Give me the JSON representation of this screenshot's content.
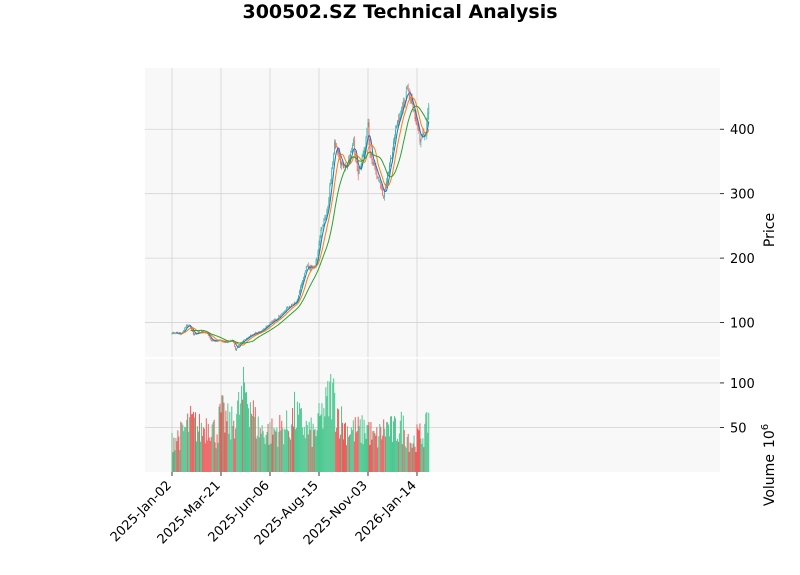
{
  "chart_data": {
    "type": "candlestick",
    "title": "300502.SZ Technical Analysis",
    "price_panel": {
      "ylabel": "Price",
      "yticks": [
        100,
        200,
        300,
        400
      ],
      "ylim": [
        45,
        495
      ]
    },
    "volume_panel": {
      "ylabel": "Volume",
      "ylabel_exponent": "6",
      "scale_note": "10",
      "yticks": [
        50,
        100
      ],
      "ylim": [
        0,
        128
      ]
    },
    "x_tick_labels": [
      "2025-Jan-02",
      "2025-Mar-21",
      "2025-Jun-06",
      "2025-Aug-15",
      "2025-Nov-03",
      "2026-Jan-14"
    ],
    "x_tick_index": [
      0,
      50,
      100,
      150,
      200,
      250
    ],
    "n_sessions": 263,
    "colors": {
      "up": "#26a69a",
      "down": "#ef5350",
      "vol_up": "#4dc790",
      "vol_down": "#f05a5a",
      "ma_short": "#1f77b4",
      "ma_mid": "#ff7f0e",
      "ma_long": "#2ca02c",
      "panel_bg": "#f8f8f8",
      "grid": "#d3d3d3"
    },
    "price_anchors": [
      [
        0,
        84
      ],
      [
        10,
        83
      ],
      [
        15,
        95
      ],
      [
        18,
        96
      ],
      [
        22,
        82
      ],
      [
        30,
        86
      ],
      [
        36,
        83
      ],
      [
        40,
        72
      ],
      [
        48,
        72
      ],
      [
        55,
        70
      ],
      [
        62,
        72
      ],
      [
        65,
        58
      ],
      [
        70,
        68
      ],
      [
        80,
        80
      ],
      [
        90,
        86
      ],
      [
        100,
        98
      ],
      [
        110,
        110
      ],
      [
        120,
        125
      ],
      [
        128,
        135
      ],
      [
        132,
        160
      ],
      [
        137,
        185
      ],
      [
        145,
        185
      ],
      [
        148,
        200
      ],
      [
        152,
        245
      ],
      [
        158,
        270
      ],
      [
        162,
        320
      ],
      [
        166,
        380
      ],
      [
        172,
        350
      ],
      [
        176,
        340
      ],
      [
        180,
        350
      ],
      [
        185,
        378
      ],
      [
        190,
        330
      ],
      [
        193,
        350
      ],
      [
        197,
        375
      ],
      [
        200,
        410
      ],
      [
        202,
        358
      ],
      [
        206,
        345
      ],
      [
        212,
        320
      ],
      [
        216,
        295
      ],
      [
        220,
        330
      ],
      [
        224,
        358
      ],
      [
        228,
        395
      ],
      [
        232,
        420
      ],
      [
        236,
        440
      ],
      [
        240,
        460
      ],
      [
        245,
        440
      ],
      [
        250,
        405
      ],
      [
        253,
        385
      ],
      [
        256,
        392
      ],
      [
        259,
        398
      ],
      [
        262,
        438
      ]
    ],
    "volume_anchors": [
      [
        0,
        40
      ],
      [
        10,
        45
      ],
      [
        15,
        55
      ],
      [
        20,
        60
      ],
      [
        30,
        50
      ],
      [
        38,
        62
      ],
      [
        45,
        45
      ],
      [
        50,
        70
      ],
      [
        60,
        55
      ],
      [
        70,
        80
      ],
      [
        75,
        100
      ],
      [
        80,
        85
      ],
      [
        85,
        60
      ],
      [
        90,
        50
      ],
      [
        100,
        48
      ],
      [
        110,
        52
      ],
      [
        120,
        55
      ],
      [
        125,
        70
      ],
      [
        130,
        62
      ],
      [
        137,
        52
      ],
      [
        145,
        45
      ],
      [
        150,
        60
      ],
      [
        158,
        80
      ],
      [
        163,
        98
      ],
      [
        167,
        80
      ],
      [
        175,
        55
      ],
      [
        185,
        50
      ],
      [
        195,
        50
      ],
      [
        200,
        55
      ],
      [
        205,
        40
      ],
      [
        210,
        42
      ],
      [
        215,
        50
      ],
      [
        220,
        55
      ],
      [
        225,
        48
      ],
      [
        230,
        52
      ],
      [
        235,
        55
      ],
      [
        240,
        45
      ],
      [
        245,
        35
      ],
      [
        250,
        42
      ],
      [
        255,
        45
      ],
      [
        260,
        52
      ],
      [
        262,
        75
      ]
    ]
  }
}
